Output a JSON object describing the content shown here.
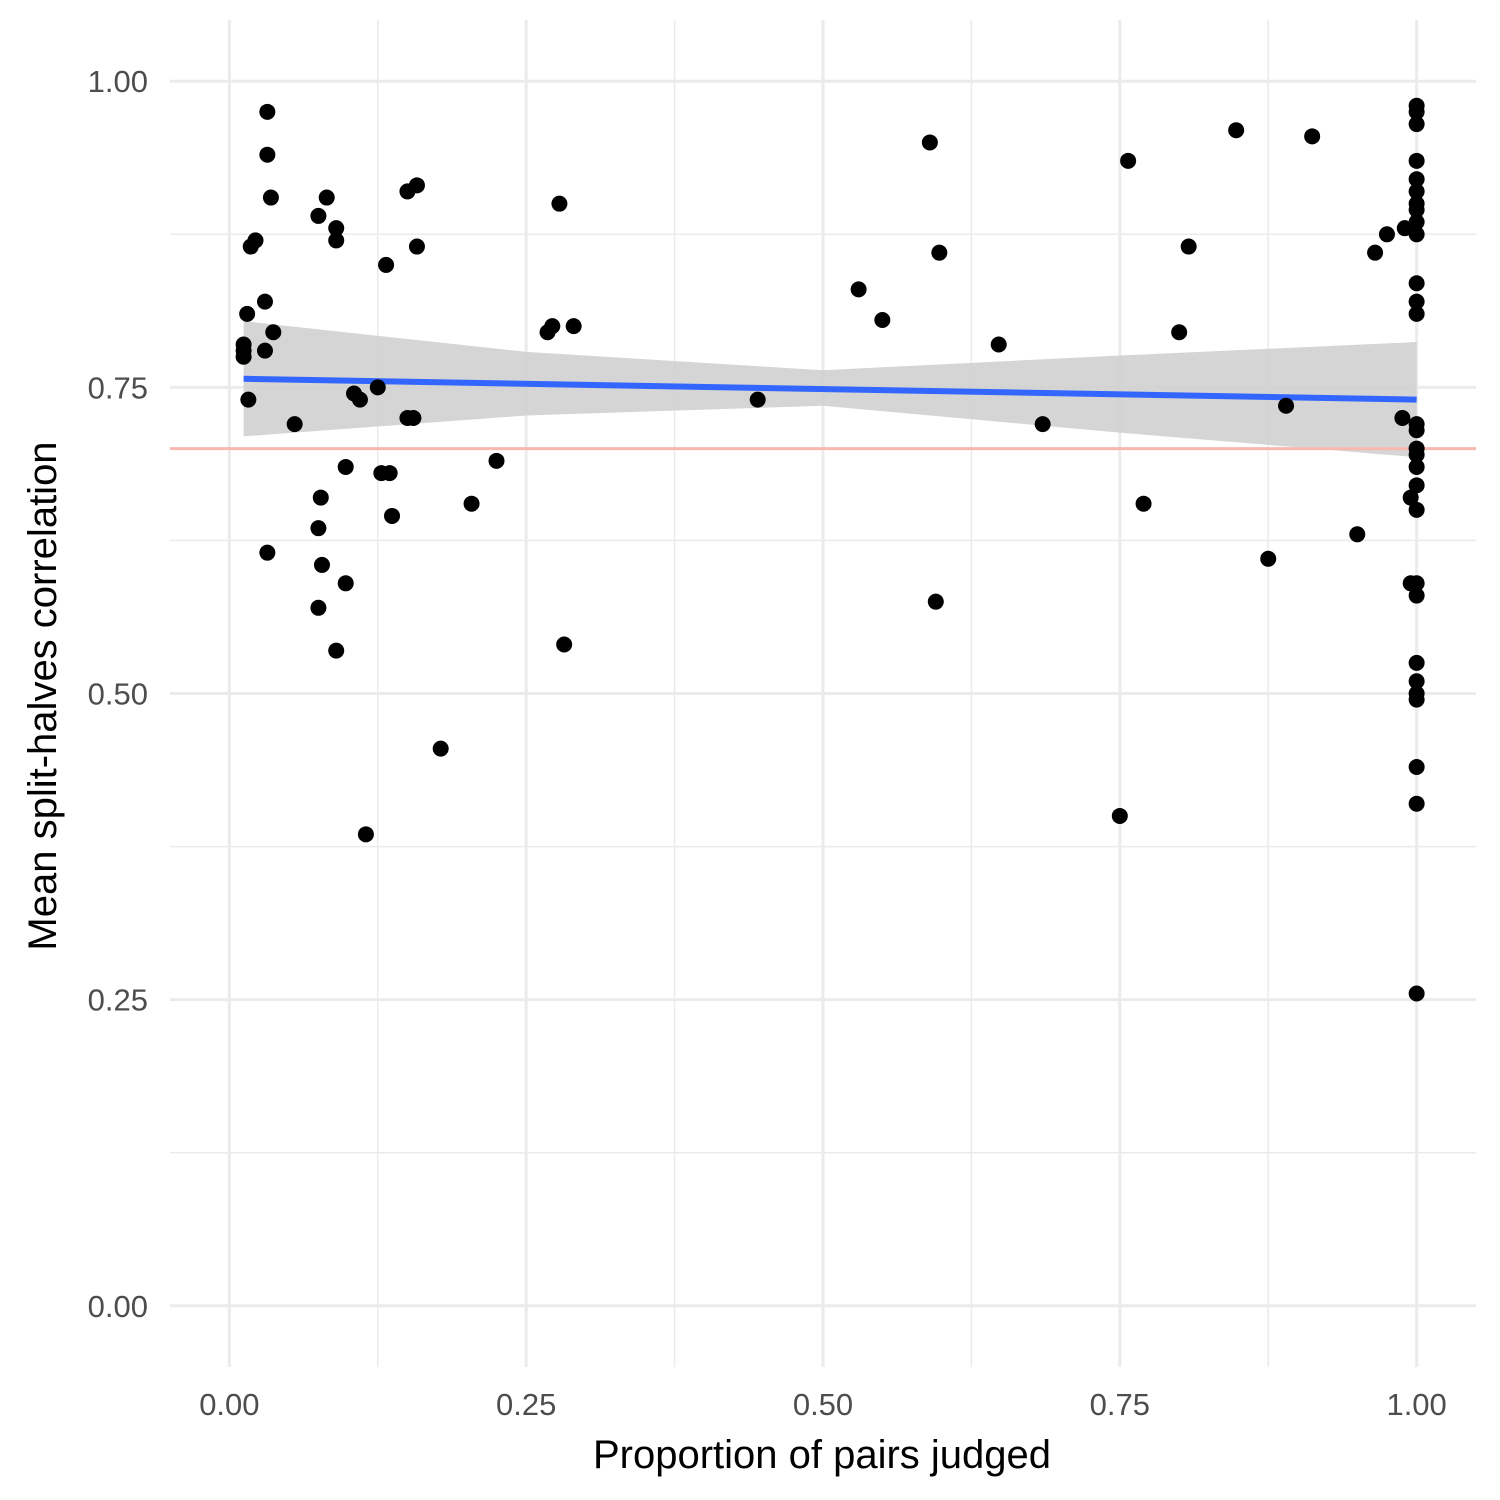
{
  "chart_data": {
    "type": "scatter",
    "title": "",
    "xlabel": "Proportion of pairs judged",
    "ylabel": "Mean split-halves correlation",
    "xlim": [
      -0.05,
      1.05
    ],
    "ylim": [
      -0.05,
      1.05
    ],
    "x_ticks": [
      0,
      0.25,
      0.5,
      0.75,
      1
    ],
    "x_tick_labels": [
      "0.00",
      "0.25",
      "0.50",
      "0.75",
      "1.00"
    ],
    "y_ticks": [
      0,
      0.25,
      0.5,
      0.75,
      1
    ],
    "y_tick_labels": [
      "0.00",
      "0.25",
      "0.50",
      "0.75",
      "1.00"
    ],
    "grid": true,
    "reference_line": {
      "y": 0.7,
      "color": "#f8b8b0"
    },
    "trend": {
      "color": "#3366ff",
      "band_color": "#d0d0d0",
      "points": [
        {
          "x": 0.012,
          "y": 0.757,
          "lower": 0.71,
          "upper": 0.804
        },
        {
          "x": 0.25,
          "y": 0.753,
          "lower": 0.727,
          "upper": 0.779
        },
        {
          "x": 0.5,
          "y": 0.749,
          "lower": 0.735,
          "upper": 0.764
        },
        {
          "x": 0.75,
          "y": 0.744,
          "lower": 0.713,
          "upper": 0.776
        },
        {
          "x": 1.0,
          "y": 0.74,
          "lower": 0.693,
          "upper": 0.787
        }
      ]
    },
    "point_color": "#000000",
    "points": [
      [
        0.012,
        0.78
      ],
      [
        0.012,
        0.785
      ],
      [
        0.012,
        0.775
      ],
      [
        0.015,
        0.81
      ],
      [
        0.016,
        0.74
      ],
      [
        0.018,
        0.865
      ],
      [
        0.022,
        0.87
      ],
      [
        0.03,
        0.82
      ],
      [
        0.03,
        0.78
      ],
      [
        0.032,
        0.975
      ],
      [
        0.032,
        0.94
      ],
      [
        0.032,
        0.615
      ],
      [
        0.035,
        0.905
      ],
      [
        0.037,
        0.795
      ],
      [
        0.055,
        0.72
      ],
      [
        0.075,
        0.89
      ],
      [
        0.075,
        0.635
      ],
      [
        0.075,
        0.57
      ],
      [
        0.077,
        0.66
      ],
      [
        0.078,
        0.605
      ],
      [
        0.082,
        0.905
      ],
      [
        0.09,
        0.87
      ],
      [
        0.09,
        0.88
      ],
      [
        0.09,
        0.535
      ],
      [
        0.098,
        0.685
      ],
      [
        0.098,
        0.59
      ],
      [
        0.105,
        0.745
      ],
      [
        0.11,
        0.74
      ],
      [
        0.115,
        0.385
      ],
      [
        0.125,
        0.75
      ],
      [
        0.128,
        0.68
      ],
      [
        0.132,
        0.85
      ],
      [
        0.135,
        0.68
      ],
      [
        0.137,
        0.645
      ],
      [
        0.15,
        0.91
      ],
      [
        0.15,
        0.725
      ],
      [
        0.155,
        0.725
      ],
      [
        0.158,
        0.915
      ],
      [
        0.158,
        0.865
      ],
      [
        0.178,
        0.455
      ],
      [
        0.204,
        0.655
      ],
      [
        0.225,
        0.69
      ],
      [
        0.268,
        0.795
      ],
      [
        0.272,
        0.8
      ],
      [
        0.278,
        0.9
      ],
      [
        0.282,
        0.54
      ],
      [
        0.29,
        0.8
      ],
      [
        0.445,
        0.74
      ],
      [
        0.53,
        0.83
      ],
      [
        0.55,
        0.805
      ],
      [
        0.59,
        0.95
      ],
      [
        0.595,
        0.575
      ],
      [
        0.598,
        0.86
      ],
      [
        0.648,
        0.785
      ],
      [
        0.685,
        0.72
      ],
      [
        0.75,
        0.4
      ],
      [
        0.757,
        0.935
      ],
      [
        0.77,
        0.655
      ],
      [
        0.8,
        0.795
      ],
      [
        0.808,
        0.865
      ],
      [
        0.848,
        0.96
      ],
      [
        0.875,
        0.61
      ],
      [
        0.89,
        0.735
      ],
      [
        0.912,
        0.955
      ],
      [
        0.95,
        0.63
      ],
      [
        0.965,
        0.86
      ],
      [
        0.975,
        0.875
      ],
      [
        0.988,
        0.725
      ],
      [
        0.99,
        0.88
      ],
      [
        0.995,
        0.66
      ],
      [
        0.995,
        0.59
      ],
      [
        1.0,
        0.98
      ],
      [
        1.0,
        0.975
      ],
      [
        1.0,
        0.965
      ],
      [
        1.0,
        0.935
      ],
      [
        1.0,
        0.92
      ],
      [
        1.0,
        0.91
      ],
      [
        1.0,
        0.9
      ],
      [
        1.0,
        0.895
      ],
      [
        1.0,
        0.885
      ],
      [
        1.0,
        0.875
      ],
      [
        1.0,
        0.835
      ],
      [
        1.0,
        0.82
      ],
      [
        1.0,
        0.81
      ],
      [
        1.0,
        0.72
      ],
      [
        1.0,
        0.715
      ],
      [
        1.0,
        0.7
      ],
      [
        1.0,
        0.695
      ],
      [
        1.0,
        0.685
      ],
      [
        1.0,
        0.67
      ],
      [
        1.0,
        0.65
      ],
      [
        1.0,
        0.59
      ],
      [
        1.0,
        0.58
      ],
      [
        1.0,
        0.525
      ],
      [
        1.0,
        0.51
      ],
      [
        1.0,
        0.5
      ],
      [
        1.0,
        0.495
      ],
      [
        1.0,
        0.44
      ],
      [
        1.0,
        0.41
      ],
      [
        1.0,
        0.255
      ]
    ]
  }
}
